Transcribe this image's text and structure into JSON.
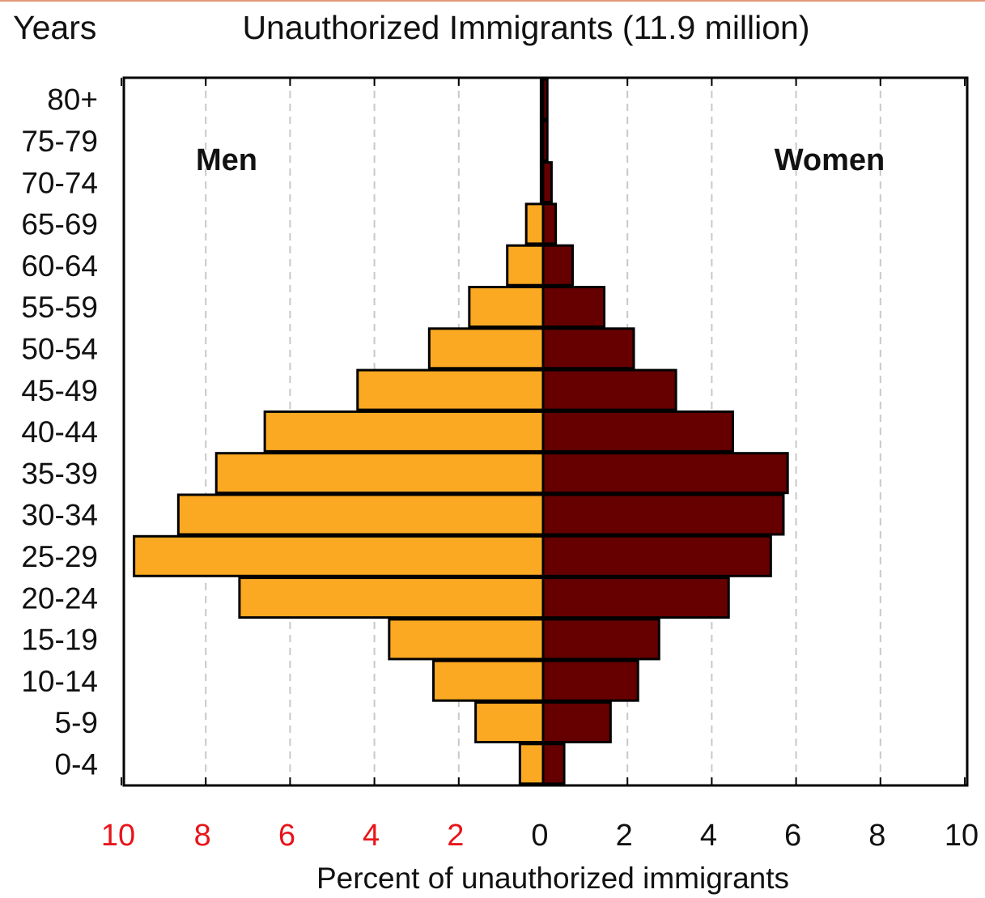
{
  "chart_data": {
    "type": "bar",
    "orientation": "horizontal-population-pyramid",
    "title": "Unauthorized Immigrants (11.9 million)",
    "ylabel": "Years",
    "xlabel": "Percent of unauthorized immigrants",
    "categories": [
      "80+",
      "75-79",
      "70-74",
      "65-69",
      "60-64",
      "55-59",
      "50-54",
      "45-49",
      "40-44",
      "35-39",
      "30-34",
      "25-29",
      "20-24",
      "15-19",
      "10-14",
      "5-9",
      "0-4"
    ],
    "series": [
      {
        "name": "Men",
        "color": "#fba922",
        "values": [
          0.05,
          0.05,
          0.05,
          0.4,
          0.85,
          1.75,
          2.7,
          4.4,
          6.6,
          7.75,
          8.65,
          9.7,
          7.2,
          3.65,
          2.6,
          1.6,
          0.55
        ]
      },
      {
        "name": "Women",
        "color": "#660000",
        "values": [
          0.1,
          0.1,
          0.2,
          0.3,
          0.7,
          1.45,
          2.15,
          3.15,
          4.5,
          5.8,
          5.7,
          5.4,
          4.4,
          2.75,
          2.25,
          1.6,
          0.5
        ]
      }
    ],
    "xlim": [
      -10,
      10
    ],
    "x_ticks": [
      {
        "value": -10,
        "label": "10"
      },
      {
        "value": -8,
        "label": "8"
      },
      {
        "value": -6,
        "label": "6"
      },
      {
        "value": -4,
        "label": "4"
      },
      {
        "value": -2,
        "label": "2"
      },
      {
        "value": 0,
        "label": "0"
      },
      {
        "value": 2,
        "label": "2"
      },
      {
        "value": 4,
        "label": "4"
      },
      {
        "value": 6,
        "label": "6"
      },
      {
        "value": 8,
        "label": "8"
      },
      {
        "value": 10,
        "label": "10"
      }
    ],
    "left_tick_color": "#e8141a",
    "right_tick_color": "#111111",
    "grid": "vertical dashed",
    "men_label": "Men",
    "women_label": "Women"
  }
}
